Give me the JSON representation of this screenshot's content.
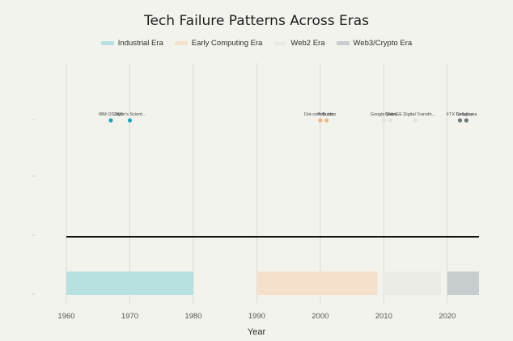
{
  "chart_data": {
    "type": "timeline",
    "title": "Tech Failure Patterns Across Eras",
    "xlabel": "Year",
    "xlim": [
      1960,
      2025
    ],
    "xticks": [
      1960,
      1970,
      1980,
      1990,
      2000,
      2010,
      2020
    ],
    "grid": true,
    "legend_position": "top-center",
    "series": [
      {
        "name": "Industrial Era",
        "color": "#b8e0e1",
        "start": 1960,
        "end": 1980
      },
      {
        "name": "Early Computing Era",
        "color": "#f5e0cc",
        "start": 1990,
        "end": 2009
      },
      {
        "name": "Web2 Era",
        "color": "#ecece6",
        "start": 2010,
        "end": 2019
      },
      {
        "name": "Web3/Crypto Era",
        "color": "#c7cdce",
        "start": 2020,
        "end": 2025
      }
    ],
    "events": [
      {
        "year": 1967,
        "label": "IBM OS/360",
        "series": "Industrial Era",
        "color": "#23a7b6"
      },
      {
        "year": 1970,
        "label": "Taylor's Scient...",
        "series": "Industrial Era",
        "color": "#23a7b6"
      },
      {
        "year": 2000,
        "label": "Dot-com Bubb...",
        "series": "Early Computing Era",
        "color": "#f3b785"
      },
      {
        "year": 2001,
        "label": "Pets.com",
        "series": "Early Computing Era",
        "color": "#f3b785"
      },
      {
        "year": 2010,
        "label": "Google Wave",
        "series": "Web2 Era",
        "color": "#e4e4df"
      },
      {
        "year": 2011,
        "label": "Quibi",
        "series": "Web2 Era",
        "color": "#e4e4df"
      },
      {
        "year": 2015,
        "label": "GE Digital Transfo...",
        "series": "Web2 Era",
        "color": "#e4e4df"
      },
      {
        "year": 2022,
        "label": "FTX Collapse",
        "series": "Web3/Crypto Era",
        "color": "#6e7879"
      },
      {
        "year": 2023,
        "label": "Terra/Luna",
        "series": "Web3/Crypto Era",
        "color": "#6e7879"
      }
    ]
  }
}
